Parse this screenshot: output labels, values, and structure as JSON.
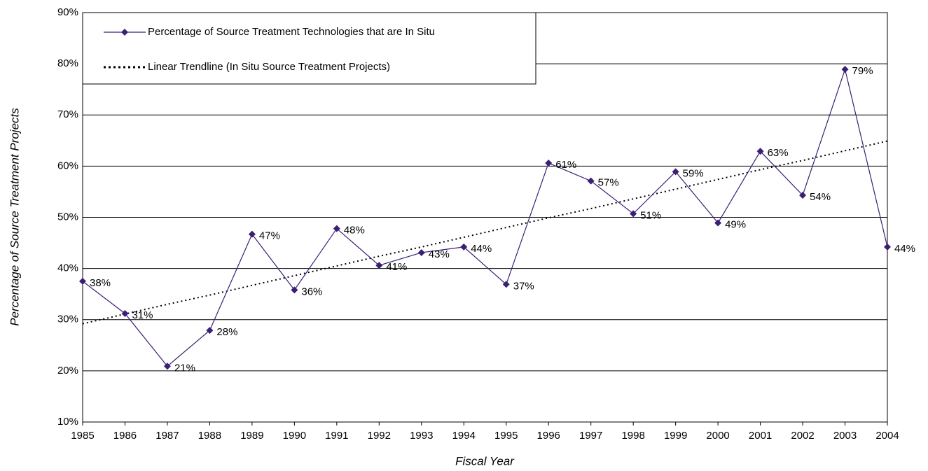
{
  "chart_data": {
    "type": "line",
    "xlabel": "Fiscal Year",
    "ylabel": "Percentage of Source Treatment Projects",
    "categories": [
      "1985",
      "1986",
      "1987",
      "1988",
      "1989",
      "1990",
      "1991",
      "1992",
      "1993",
      "1994",
      "1995",
      "1996",
      "1997",
      "1998",
      "1999",
      "2000",
      "2001",
      "2002",
      "2003",
      "2004"
    ],
    "series": [
      {
        "name": "Percentage of Source Treatment Technologies that are In Situ",
        "color": "#3b1f74",
        "style": "solid",
        "marker": "diamond",
        "values": [
          37.5,
          31.2,
          20.9,
          27.9,
          46.7,
          35.8,
          47.8,
          40.6,
          43.1,
          44.2,
          36.9,
          60.6,
          57.1,
          50.7,
          58.9,
          48.9,
          62.9,
          54.3,
          78.9,
          44.2
        ],
        "value_labels": [
          "38%",
          "31%",
          "21%",
          "28%",
          "47%",
          "36%",
          "48%",
          "41%",
          "43%",
          "44%",
          "37%",
          "61%",
          "57%",
          "51%",
          "59%",
          "49%",
          "63%",
          "54%",
          "79%",
          "44%"
        ]
      },
      {
        "name": "Linear Trendline (In Situ Source Treatment Projects)",
        "color": "#000000",
        "style": "dotted",
        "values": [
          29.2,
          31.1,
          33.0,
          34.8,
          36.7,
          38.6,
          40.5,
          42.4,
          44.2,
          46.1,
          48.0,
          49.9,
          51.7,
          53.6,
          55.5,
          57.4,
          59.3,
          61.1,
          63.0,
          64.9
        ]
      }
    ],
    "ylim": [
      10,
      90
    ],
    "yticks": [
      {
        "value": 10,
        "label": "10%"
      },
      {
        "value": 20,
        "label": "20%"
      },
      {
        "value": 30,
        "label": "30%"
      },
      {
        "value": 40,
        "label": "40%"
      },
      {
        "value": 50,
        "label": "50%"
      },
      {
        "value": 60,
        "label": "60%"
      },
      {
        "value": 70,
        "label": "70%"
      },
      {
        "value": 80,
        "label": "80%"
      },
      {
        "value": 90,
        "label": "90%"
      }
    ],
    "grid": true,
    "legend": "upper left"
  }
}
